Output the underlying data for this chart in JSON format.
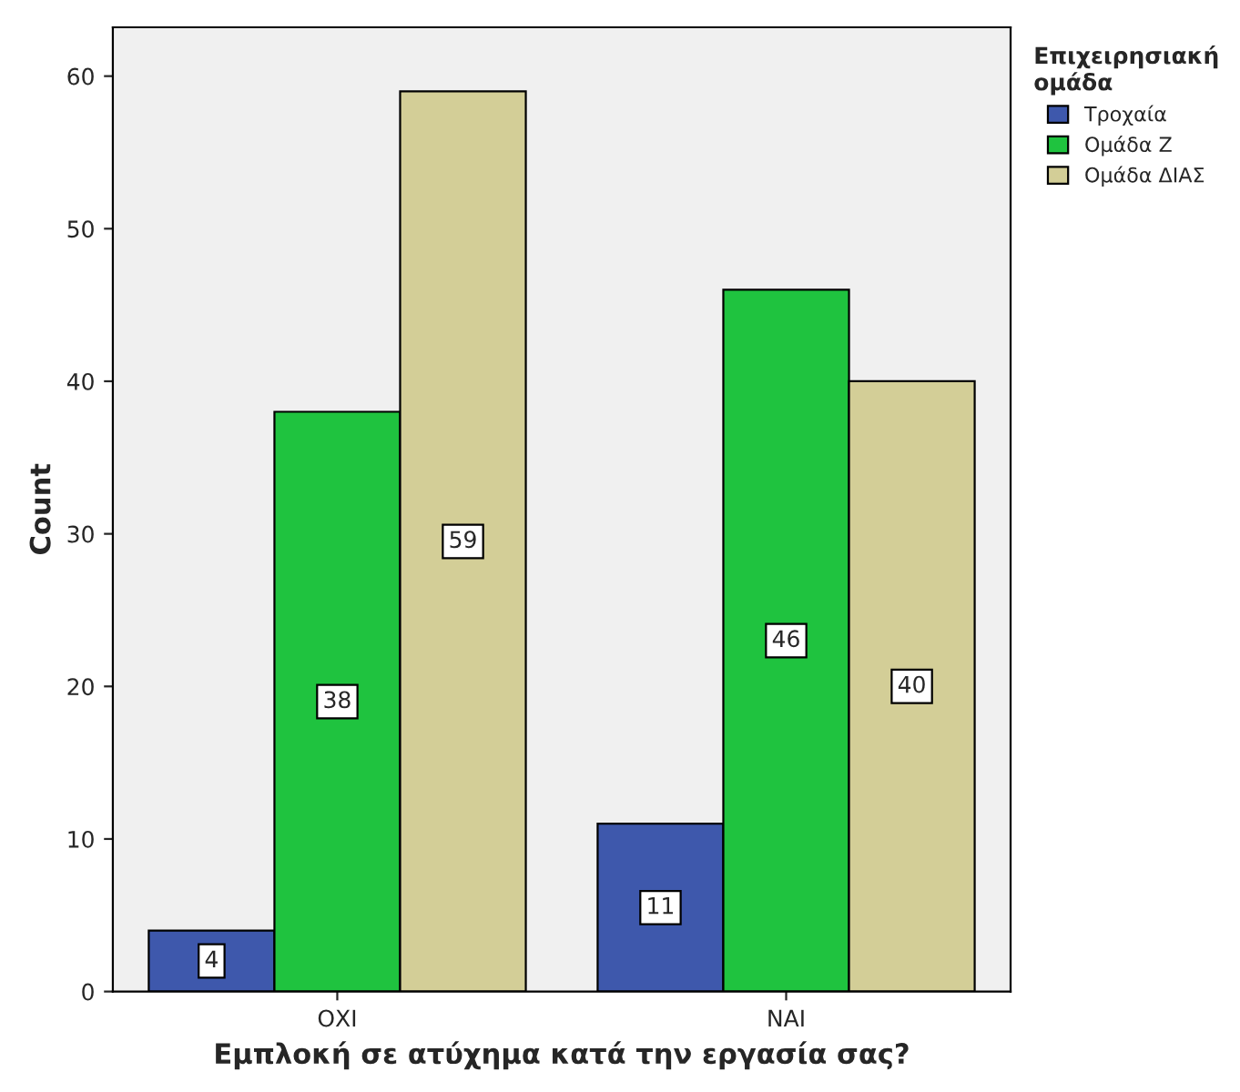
{
  "chart_data": {
    "type": "bar",
    "xlabel": "Εμπλοκή σε ατύχημα κατά την εργασία σας?",
    "ylabel": "Count",
    "legend_title": "Επιχειρησιακή\nομάδα",
    "categories": [
      "ΟΧΙ",
      "ΝΑΙ"
    ],
    "series": [
      {
        "name": "Τροχαία",
        "color": "#3e58ac",
        "values": [
          4,
          11
        ]
      },
      {
        "name": "Ομάδα Ζ",
        "color": "#1fc33f",
        "values": [
          38,
          46
        ]
      },
      {
        "name": "Ομάδα ΔΙΑΣ",
        "color": "#d3ce97",
        "values": [
          59,
          40
        ]
      }
    ],
    "ylim": [
      0,
      63.2
    ],
    "yticks": [
      0,
      10,
      20,
      30,
      40,
      50,
      60
    ],
    "data_labels": true,
    "grid": false,
    "legend": "top right"
  }
}
